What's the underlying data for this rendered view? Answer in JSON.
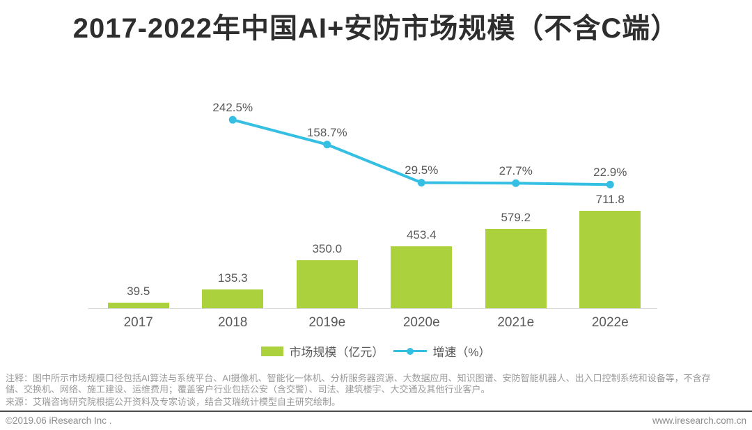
{
  "title": "2017-2022年中国AI+安防市场规模（不含C端）",
  "chart_data": {
    "type": "bar",
    "title": "2017-2022年中国AI+安防市场规模（不含C端）",
    "categories": [
      "2017",
      "2018",
      "2019e",
      "2020e",
      "2021e",
      "2022e"
    ],
    "series": [
      {
        "name": "市场规模（亿元）",
        "type": "bar",
        "color": "#abd13c",
        "values": [
          39.5,
          135.3,
          350.0,
          453.4,
          579.2,
          711.8
        ],
        "labels": [
          "39.5",
          "135.3",
          "350.0",
          "453.4",
          "579.2",
          "711.8"
        ]
      },
      {
        "name": "增速（%）",
        "type": "line",
        "color": "#35bfe2",
        "values": [
          null,
          242.5,
          158.7,
          29.5,
          27.7,
          22.9
        ],
        "labels": [
          null,
          "242.5%",
          "158.7%",
          "29.5%",
          "27.7%",
          "22.9%"
        ]
      }
    ],
    "xlabel": "",
    "ylabel": "",
    "bar_axis_max": 800,
    "line_axis_max": 280,
    "grid": false,
    "legend_position": "bottom"
  },
  "legend": {
    "bar_label": "市场规模（亿元）",
    "line_label": "增速（%）"
  },
  "notes": {
    "annotation": "注释：图中所示市场规模口径包括AI算法与系统平台、AI摄像机、智能化一体机、分析服务器资源、大数据应用、知识图谱、安防智能机器人、出入口控制系统和设备等，不含存储、交换机、网络、施工建设、运维费用；覆盖客户行业包括公安（含交警）、司法、建筑楼宇、大交通及其他行业客户。",
    "source": "来源：艾瑞咨询研究院根据公开资料及专家访谈，结合艾瑞统计模型自主研究绘制。"
  },
  "footer": {
    "copyright": "©2019.06 iResearch Inc .",
    "website": "www.iresearch.com.cn"
  },
  "colors": {
    "bar": "#abd13c",
    "line": "#35bfe2",
    "label_gray": "#595959",
    "note_gray": "#9a9a9a",
    "footer_rule": "#4d4d4d"
  }
}
